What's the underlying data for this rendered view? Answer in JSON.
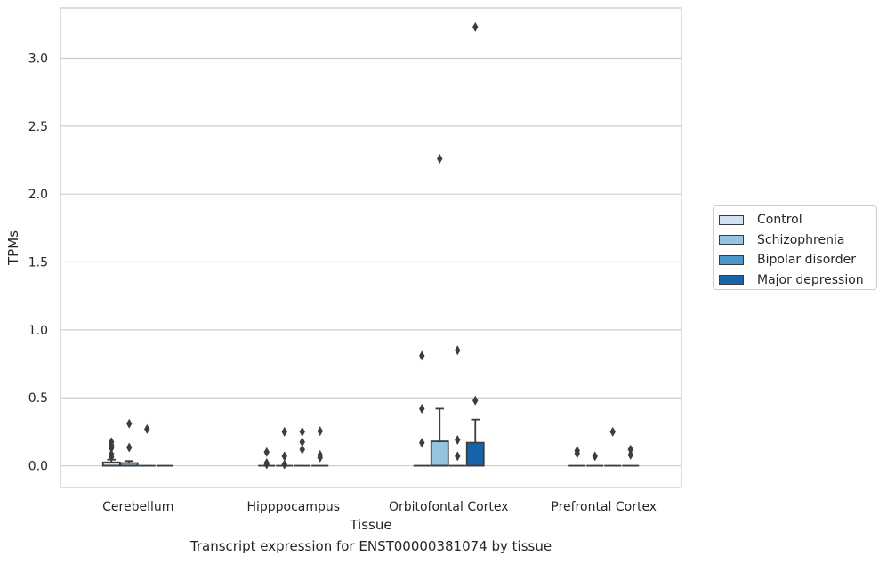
{
  "chart_data": {
    "type": "box",
    "title": "Transcript expression for ENST00000381074 by tissue",
    "xlabel": "Tissue",
    "ylabel": "TPMs",
    "categories": [
      "Cerebellum",
      "Hipppocampus",
      "Orbitofontal Cortex",
      "Prefrontal Cortex"
    ],
    "ylim": [
      -0.16,
      3.37
    ],
    "yticks": [
      0.0,
      0.5,
      1.0,
      1.5,
      2.0,
      2.5,
      3.0
    ],
    "ytick_labels": [
      "0.0",
      "0.5",
      "1.0",
      "1.5",
      "2.0",
      "2.5",
      "3.0"
    ],
    "grid": "horizontal",
    "legend_position": "right",
    "series": [
      {
        "name": "Control",
        "color": "#d0e1f2",
        "boxes": [
          {
            "min": 0.0,
            "q1": 0.0,
            "median": 0.0,
            "q3": 0.025,
            "max": 0.045,
            "outliers": [
              0.065,
              0.085,
              0.13,
              0.15,
              0.175
            ]
          },
          {
            "min": 0.0,
            "q1": 0.0,
            "median": 0.0,
            "q3": 0.0,
            "max": 0.0,
            "outliers": [
              0.01,
              0.02,
              0.1
            ]
          },
          {
            "min": 0.0,
            "q1": 0.0,
            "median": 0.0,
            "q3": 0.0,
            "max": 0.0,
            "outliers": [
              0.17,
              0.42,
              0.81
            ]
          },
          {
            "min": 0.0,
            "q1": 0.0,
            "median": 0.0,
            "q3": 0.0,
            "max": 0.0,
            "outliers": [
              0.09,
              0.11
            ]
          }
        ]
      },
      {
        "name": "Schizophrenia",
        "color": "#94c4df",
        "boxes": [
          {
            "min": 0.0,
            "q1": 0.0,
            "median": 0.0,
            "q3": 0.02,
            "max": 0.035,
            "outliers": [
              0.135,
              0.31
            ]
          },
          {
            "min": 0.0,
            "q1": 0.0,
            "median": 0.0,
            "q3": 0.0,
            "max": 0.0,
            "outliers": [
              0.01,
              0.07,
              0.25
            ]
          },
          {
            "min": 0.0,
            "q1": 0.0,
            "median": 0.0,
            "q3": 0.18,
            "max": 0.42,
            "outliers": [
              2.26
            ]
          },
          {
            "min": 0.0,
            "q1": 0.0,
            "median": 0.0,
            "q3": 0.0,
            "max": 0.0,
            "outliers": [
              0.07
            ]
          }
        ]
      },
      {
        "name": "Bipolar disorder",
        "color": "#4a98c9",
        "boxes": [
          {
            "min": 0.0,
            "q1": 0.0,
            "median": 0.0,
            "q3": 0.0,
            "max": 0.0,
            "outliers": [
              0.27
            ]
          },
          {
            "min": 0.0,
            "q1": 0.0,
            "median": 0.0,
            "q3": 0.0,
            "max": 0.0,
            "outliers": [
              0.12,
              0.175,
              0.25
            ]
          },
          {
            "min": 0.0,
            "q1": 0.0,
            "median": 0.0,
            "q3": 0.0,
            "max": 0.0,
            "outliers": [
              0.07,
              0.19,
              0.85
            ]
          },
          {
            "min": 0.0,
            "q1": 0.0,
            "median": 0.0,
            "q3": 0.0,
            "max": 0.0,
            "outliers": [
              0.25
            ]
          }
        ]
      },
      {
        "name": "Major depression",
        "color": "#1764ab",
        "boxes": [
          {
            "min": 0.0,
            "q1": 0.0,
            "median": 0.0,
            "q3": 0.0,
            "max": 0.0,
            "outliers": []
          },
          {
            "min": 0.0,
            "q1": 0.0,
            "median": 0.0,
            "q3": 0.0,
            "max": 0.0,
            "outliers": [
              0.06,
              0.08,
              0.255
            ]
          },
          {
            "min": 0.0,
            "q1": 0.0,
            "median": 0.0,
            "q3": 0.17,
            "max": 0.34,
            "outliers": [
              0.48,
              3.23
            ]
          },
          {
            "min": 0.0,
            "q1": 0.0,
            "median": 0.0,
            "q3": 0.0,
            "max": 0.0,
            "outliers": [
              0.08,
              0.12
            ]
          }
        ]
      }
    ]
  }
}
